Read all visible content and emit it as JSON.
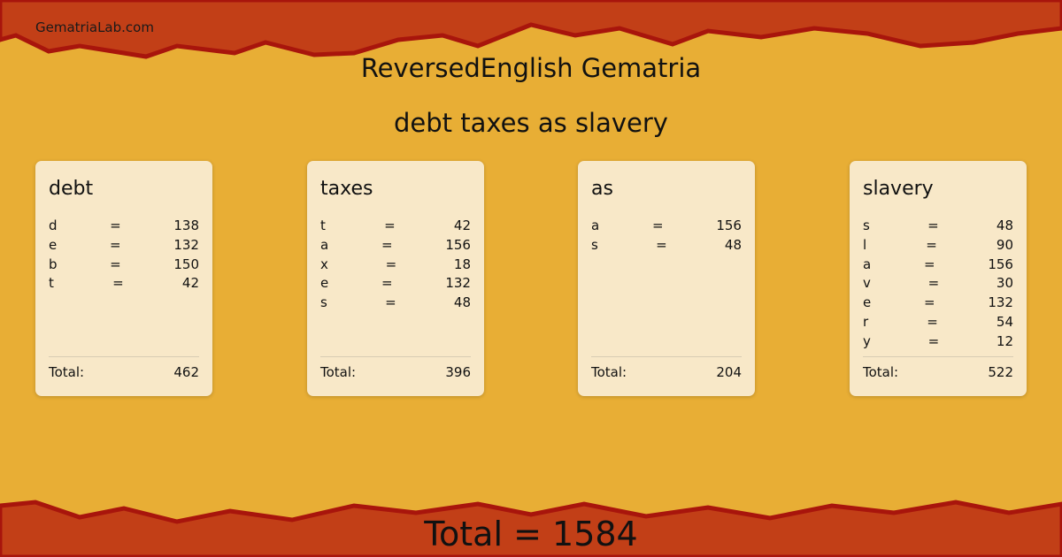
{
  "site": "GematriaLab.com",
  "title": "ReversedEnglish Gematria",
  "phrase": "debt taxes as slavery",
  "colors": {
    "background": "#e8ae35",
    "band": "#c23f17",
    "edge": "#a8150c",
    "card": "#f8e8c8"
  },
  "words": [
    {
      "word": "debt",
      "letters": [
        {
          "l": "d",
          "eq": "=",
          "v": "138"
        },
        {
          "l": "e",
          "eq": "=",
          "v": "132"
        },
        {
          "l": "b",
          "eq": "=",
          "v": "150"
        },
        {
          "l": "t",
          "eq": "=",
          "v": "42"
        }
      ],
      "total_label": "Total:",
      "total": "462"
    },
    {
      "word": "taxes",
      "letters": [
        {
          "l": "t",
          "eq": "=",
          "v": "42"
        },
        {
          "l": "a",
          "eq": "=",
          "v": "156"
        },
        {
          "l": "x",
          "eq": "=",
          "v": "18"
        },
        {
          "l": "e",
          "eq": "=",
          "v": "132"
        },
        {
          "l": "s",
          "eq": "=",
          "v": "48"
        }
      ],
      "total_label": "Total:",
      "total": "396"
    },
    {
      "word": "as",
      "letters": [
        {
          "l": "a",
          "eq": "=",
          "v": "156"
        },
        {
          "l": "s",
          "eq": "=",
          "v": "48"
        }
      ],
      "total_label": "Total:",
      "total": "204"
    },
    {
      "word": "slavery",
      "letters": [
        {
          "l": "s",
          "eq": "=",
          "v": "48"
        },
        {
          "l": "l",
          "eq": "=",
          "v": "90"
        },
        {
          "l": "a",
          "eq": "=",
          "v": "156"
        },
        {
          "l": "v",
          "eq": "=",
          "v": "30"
        },
        {
          "l": "e",
          "eq": "=",
          "v": "132"
        },
        {
          "l": "r",
          "eq": "=",
          "v": "54"
        },
        {
          "l": "y",
          "eq": "=",
          "v": "12"
        }
      ],
      "total_label": "Total:",
      "total": "522"
    }
  ],
  "grand_total": "Total = 1584"
}
